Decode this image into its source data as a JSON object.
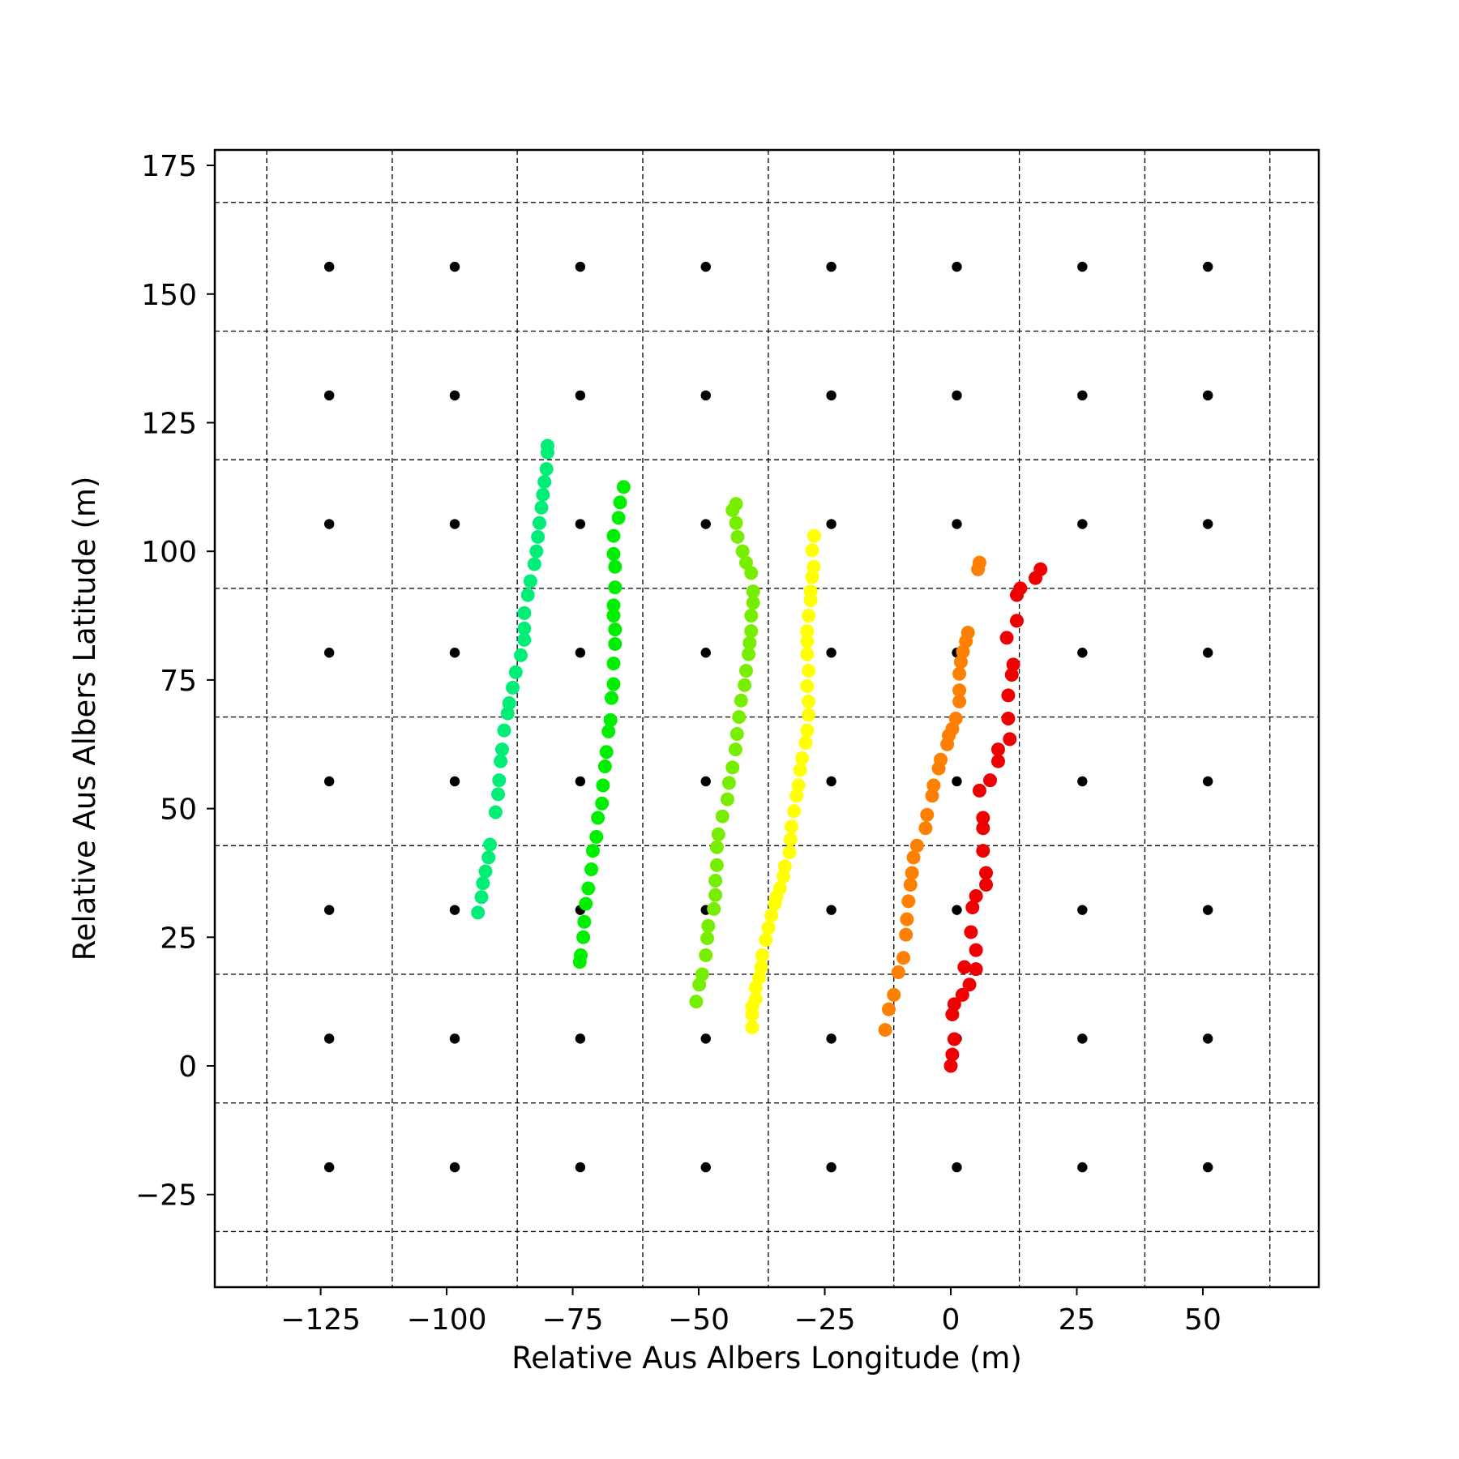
{
  "chart_data": {
    "type": "scatter",
    "title": "",
    "xlabel": "Relative Aus Albers Longitude (m)",
    "ylabel": "Relative Aus Albers Latitude (m)",
    "xlim": [
      -146,
      73
    ],
    "ylim": [
      -43,
      178
    ],
    "x_ticks": [
      -125,
      -100,
      -75,
      -50,
      -25,
      0,
      25,
      50
    ],
    "y_ticks": [
      -25,
      0,
      25,
      50,
      75,
      100,
      125,
      150,
      175
    ],
    "x_tick_labels": [
      "−125",
      "−100",
      "−75",
      "−50",
      "−25",
      "0",
      "25",
      "50"
    ],
    "y_tick_labels": [
      "−25",
      "0",
      "25",
      "50",
      "75",
      "100",
      "125",
      "150",
      "175"
    ],
    "grid": {
      "style": "dashed",
      "x_lines": [
        -135.7,
        -110.8,
        -86,
        -61.1,
        -36.2,
        -11.3,
        13.6,
        38.5,
        63.3
      ],
      "y_lines": [
        -32.2,
        -7.2,
        17.8,
        42.8,
        67.8,
        92.8,
        117.8,
        142.8,
        167.8
      ]
    },
    "legend": "none",
    "grid_centers": {
      "color": "#000000",
      "x": [
        -123.3,
        -98.4,
        -73.5,
        -48.6,
        -23.7,
        1.2,
        26.1,
        51
      ],
      "y": [
        -19.7,
        5.3,
        30.3,
        55.3,
        80.3,
        105.3,
        130.3,
        155.3
      ]
    },
    "series": [
      {
        "color": "#00ee77",
        "points": [
          [
            -93.8,
            29.8
          ],
          [
            -93.1,
            32.8
          ],
          [
            -92.8,
            35.5
          ],
          [
            -92.3,
            37.8
          ],
          [
            -91.7,
            40.5
          ],
          [
            -91.4,
            43
          ],
          [
            -90.3,
            49.3
          ],
          [
            -89.8,
            52.8
          ],
          [
            -89.6,
            55.5
          ],
          [
            -89.3,
            59.2
          ],
          [
            -89,
            61.5
          ],
          [
            -88.6,
            65.2
          ],
          [
            -87.9,
            68.5
          ],
          [
            -87.6,
            70.5
          ],
          [
            -86.9,
            73.5
          ],
          [
            -86.3,
            76.5
          ],
          [
            -85.3,
            79.8
          ],
          [
            -84.6,
            82.8
          ],
          [
            -84.6,
            85
          ],
          [
            -84.6,
            88
          ],
          [
            -83.9,
            91.5
          ],
          [
            -83.4,
            94.2
          ],
          [
            -82.6,
            97.5
          ],
          [
            -82.2,
            100
          ],
          [
            -81.9,
            102.8
          ],
          [
            -81.6,
            105.5
          ],
          [
            -81.2,
            108.5
          ],
          [
            -80.9,
            111
          ],
          [
            -80.6,
            113.5
          ],
          [
            -80.2,
            116
          ],
          [
            -80,
            119.2
          ],
          [
            -80,
            120.5
          ]
        ]
      },
      {
        "color": "#00ee00",
        "points": [
          [
            -73.6,
            20.2
          ],
          [
            -73.4,
            21.5
          ],
          [
            -72.9,
            25
          ],
          [
            -72.7,
            28
          ],
          [
            -72.4,
            31.5
          ],
          [
            -71.9,
            34.5
          ],
          [
            -71.3,
            38.2
          ],
          [
            -71,
            41.8
          ],
          [
            -70.3,
            44.5
          ],
          [
            -70,
            48.2
          ],
          [
            -69.2,
            51
          ],
          [
            -69,
            54.5
          ],
          [
            -68.6,
            58.2
          ],
          [
            -68.3,
            61
          ],
          [
            -67.9,
            65
          ],
          [
            -67.5,
            67.2
          ],
          [
            -67.3,
            71.5
          ],
          [
            -66.9,
            74.2
          ],
          [
            -66.9,
            78.2
          ],
          [
            -66.6,
            82
          ],
          [
            -66.6,
            84.8
          ],
          [
            -66.9,
            87.5
          ],
          [
            -66.9,
            89.5
          ],
          [
            -66.6,
            93
          ],
          [
            -66.6,
            97
          ],
          [
            -66.9,
            99.5
          ],
          [
            -66.9,
            103
          ],
          [
            -65.9,
            106.5
          ],
          [
            -65.6,
            109.5
          ],
          [
            -64.9,
            112.5
          ]
        ]
      },
      {
        "color": "#77ee00",
        "points": [
          [
            -50.5,
            12.5
          ],
          [
            -49.9,
            15.8
          ],
          [
            -49.3,
            17.8
          ],
          [
            -48.6,
            21.5
          ],
          [
            -48.3,
            24.8
          ],
          [
            -48.1,
            27.2
          ],
          [
            -47,
            30.5
          ],
          [
            -46.7,
            33.2
          ],
          [
            -46.7,
            36
          ],
          [
            -46.4,
            39
          ],
          [
            -46.4,
            42.5
          ],
          [
            -46.1,
            45
          ],
          [
            -45.3,
            48.5
          ],
          [
            -44.3,
            51.8
          ],
          [
            -44,
            55
          ],
          [
            -43.3,
            58
          ],
          [
            -42.7,
            61.5
          ],
          [
            -42.4,
            64.5
          ],
          [
            -42,
            67.8
          ],
          [
            -41.6,
            71
          ],
          [
            -40.9,
            74
          ],
          [
            -40.6,
            76.8
          ],
          [
            -40.1,
            80
          ],
          [
            -39.9,
            82.2
          ],
          [
            -39.6,
            84.5
          ],
          [
            -39.6,
            87.5
          ],
          [
            -39.2,
            90
          ],
          [
            -39.2,
            92.2
          ],
          [
            -39.6,
            95.8
          ],
          [
            -40.6,
            97.8
          ],
          [
            -41.3,
            100
          ],
          [
            -42.3,
            102.8
          ],
          [
            -42.6,
            105.5
          ],
          [
            -43.3,
            108
          ],
          [
            -42.6,
            109.2
          ]
        ]
      },
      {
        "color": "#ffff00",
        "points": [
          [
            -39.4,
            7.5
          ],
          [
            -39.4,
            10
          ],
          [
            -39.4,
            11.5
          ],
          [
            -38.7,
            13
          ],
          [
            -38.7,
            15.2
          ],
          [
            -38,
            17.2
          ],
          [
            -37.6,
            19.2
          ],
          [
            -37.4,
            21.5
          ],
          [
            -36.7,
            24.5
          ],
          [
            -36.2,
            26.8
          ],
          [
            -35.6,
            29.2
          ],
          [
            -34.9,
            31.5
          ],
          [
            -34.6,
            32.8
          ],
          [
            -33.9,
            34.5
          ],
          [
            -33.2,
            36.8
          ],
          [
            -32.9,
            38.8
          ],
          [
            -32,
            41.5
          ],
          [
            -31.8,
            44
          ],
          [
            -31.6,
            46.5
          ],
          [
            -31.1,
            49.5
          ],
          [
            -30.6,
            52.5
          ],
          [
            -30.2,
            54.5
          ],
          [
            -29.9,
            57.5
          ],
          [
            -29.5,
            59.8
          ],
          [
            -28.8,
            62.8
          ],
          [
            -28.5,
            65.2
          ],
          [
            -28.2,
            68.2
          ],
          [
            -28.2,
            70.8
          ],
          [
            -28.5,
            73.8
          ],
          [
            -28.2,
            76.8
          ],
          [
            -28.5,
            80
          ],
          [
            -28.5,
            82.5
          ],
          [
            -28.5,
            84.5
          ],
          [
            -28.2,
            87.5
          ],
          [
            -27.8,
            90.5
          ],
          [
            -27.8,
            92.2
          ],
          [
            -27.5,
            95
          ],
          [
            -27.2,
            97
          ],
          [
            -27.5,
            100.2
          ],
          [
            -27.1,
            103
          ]
        ]
      },
      {
        "color": "#ff7f00",
        "points": [
          [
            -13,
            7
          ],
          [
            -12.3,
            11
          ],
          [
            -11.3,
            13.8
          ],
          [
            -10.4,
            18.2
          ],
          [
            -9.4,
            21
          ],
          [
            -8.9,
            25.5
          ],
          [
            -8.7,
            28.5
          ],
          [
            -8.4,
            32
          ],
          [
            -8,
            35.2
          ],
          [
            -7.7,
            37.5
          ],
          [
            -7.4,
            40.5
          ],
          [
            -6.7,
            42.8
          ],
          [
            -5,
            46.2
          ],
          [
            -4.7,
            48.8
          ],
          [
            -3.7,
            52.5
          ],
          [
            -3.4,
            54.5
          ],
          [
            -2.4,
            57.8
          ],
          [
            -2,
            59.5
          ],
          [
            -0.7,
            62.5
          ],
          [
            -0.4,
            64.2
          ],
          [
            0.3,
            65.5
          ],
          [
            1,
            67.5
          ],
          [
            1.7,
            70.8
          ],
          [
            1.7,
            73
          ],
          [
            1.7,
            76.2
          ],
          [
            2,
            78.5
          ],
          [
            2.4,
            80.5
          ],
          [
            3,
            82.5
          ],
          [
            3.4,
            84.2
          ],
          [
            5.4,
            96.5
          ],
          [
            5.7,
            97.8
          ]
        ]
      },
      {
        "color": "#ee0000",
        "points": [
          [
            0,
            0
          ],
          [
            0.3,
            2.2
          ],
          [
            0.7,
            5.2
          ],
          [
            0.3,
            10
          ],
          [
            0.7,
            12
          ],
          [
            2.3,
            13.8
          ],
          [
            3.7,
            15.8
          ],
          [
            2.7,
            19.2
          ],
          [
            5,
            18.8
          ],
          [
            5,
            22.5
          ],
          [
            4,
            26
          ],
          [
            4.3,
            30.8
          ],
          [
            5,
            33
          ],
          [
            7,
            35.2
          ],
          [
            7,
            37.5
          ],
          [
            6.4,
            41.8
          ],
          [
            6.4,
            46.2
          ],
          [
            6.4,
            48.2
          ],
          [
            5.7,
            53.5
          ],
          [
            7.8,
            55.5
          ],
          [
            9.4,
            59.2
          ],
          [
            9.4,
            61.5
          ],
          [
            11.7,
            63.5
          ],
          [
            11.4,
            67.5
          ],
          [
            11.4,
            72
          ],
          [
            12.1,
            76
          ],
          [
            12.4,
            78
          ],
          [
            11.1,
            83.2
          ],
          [
            13.1,
            86.5
          ],
          [
            13.1,
            91.5
          ],
          [
            13.8,
            92.8
          ],
          [
            16.8,
            94.8
          ],
          [
            17.8,
            96.5
          ]
        ]
      }
    ]
  }
}
